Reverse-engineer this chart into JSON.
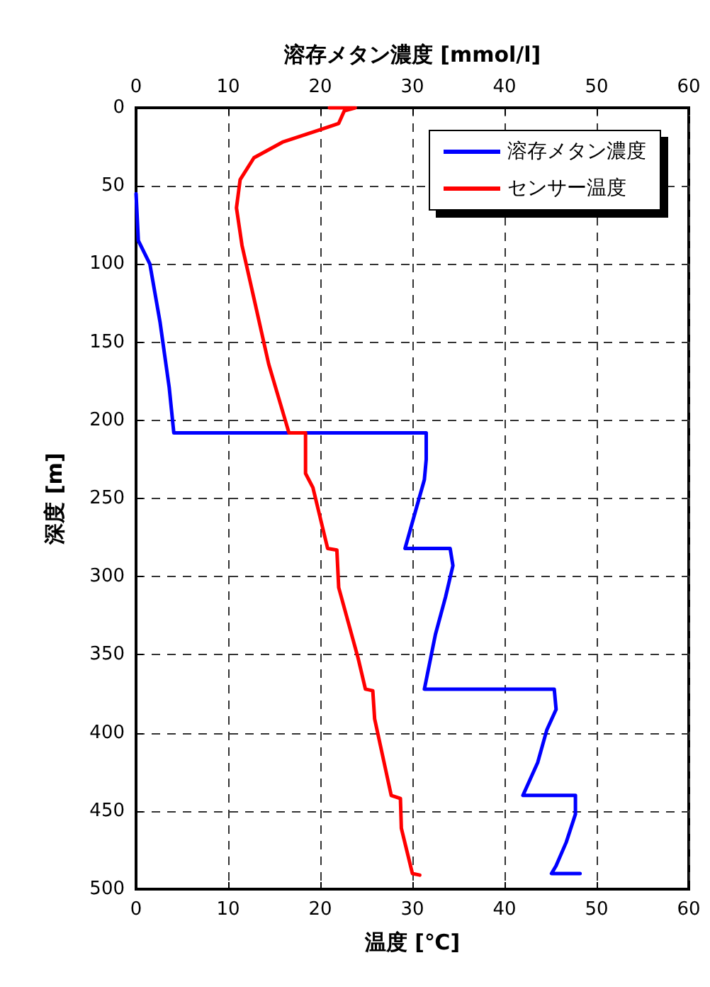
{
  "chart_data": {
    "type": "line",
    "xlabel": "温度 [℃]",
    "x2label": "溶存メタン濃度 [mmol/l]",
    "ylabel": "深度 [m]",
    "xlim": [
      0,
      60
    ],
    "xticks": [
      0,
      10,
      20,
      30,
      40,
      50,
      60
    ],
    "x2lim": [
      0,
      60
    ],
    "x2ticks": [
      0,
      10,
      20,
      30,
      40,
      50,
      60
    ],
    "ylim": [
      500,
      0
    ],
    "yticks": [
      0,
      50,
      100,
      150,
      200,
      250,
      300,
      350,
      400,
      450,
      500
    ],
    "grid": true,
    "legend": "top right",
    "marker": "none",
    "line_style": "solid",
    "series": [
      {
        "name": "溶存メタン濃度",
        "color": "#0000ff",
        "x": [
          0,
          0.25,
          1.5,
          2.6,
          3.6,
          4.1,
          31.5,
          31.5,
          31.3,
          30.2,
          29.2,
          34.1,
          34.4,
          33.6,
          32.5,
          31.3,
          45.4,
          45.6,
          44.6,
          43.6,
          42,
          47.7,
          47.7,
          46.7,
          45.6,
          45.1,
          48.2
        ],
        "values": [
          55,
          85,
          100,
          137,
          179,
          208,
          208,
          225,
          238,
          261,
          282,
          282,
          293,
          313,
          337,
          372,
          372,
          385,
          398,
          419,
          440,
          440,
          452,
          470,
          485,
          490,
          490
        ]
      },
      {
        "name": "センサー温度",
        "color": "#ff0000",
        "x": [
          21,
          23.8,
          22.6,
          22,
          20,
          15.9,
          12.8,
          11.3,
          10.9,
          11.5,
          12.8,
          14.4,
          16.4,
          16.6,
          18.4,
          18.4,
          19.2,
          20.8,
          21.8,
          22,
          24.1,
          24.9,
          25.7,
          25.9,
          27.7,
          28.7,
          28.8,
          30,
          30.8
        ],
        "values": [
          0,
          0,
          2,
          10,
          14,
          22,
          32,
          46,
          64,
          88,
          122,
          164,
          204,
          208,
          208,
          234,
          243,
          282,
          283,
          307,
          352,
          372,
          373,
          391,
          440,
          442,
          461,
          490,
          491
        ]
      }
    ]
  }
}
